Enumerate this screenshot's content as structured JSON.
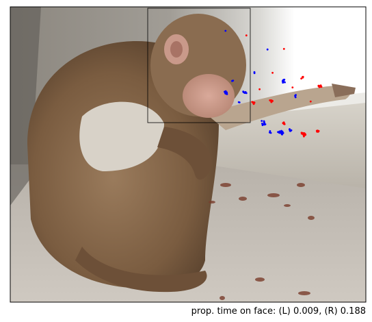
{
  "caption": "prop. time on face: (L) 0.009, (R) 0.188",
  "colors": {
    "left_eye_points": "#0000ff",
    "right_eye_points": "#ff0000",
    "face_box": "#000000"
  },
  "photo_subject": "monkey-photo"
}
